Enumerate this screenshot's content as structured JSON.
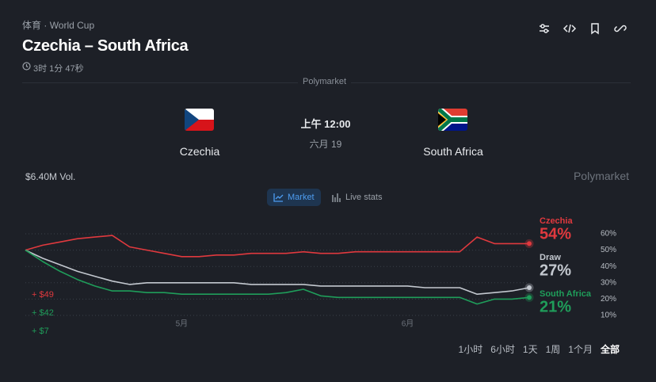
{
  "header": {
    "breadcrumb": [
      "体育",
      "World Cup"
    ],
    "title": "Czechia – South Africa",
    "countdown": "3时 1分 47秒"
  },
  "source": "Polymarket",
  "match": {
    "home": "Czechia",
    "away": "South Africa",
    "time": "上午 12:00",
    "date": "六月 19"
  },
  "volume": "$6.40M Vol.",
  "watermark": "Polymarket",
  "tabs": [
    "Market",
    "Live stats"
  ],
  "chart_data": {
    "type": "line",
    "categories": [
      null,
      null,
      null,
      null,
      null,
      null,
      null,
      null,
      null,
      "5月",
      null,
      null,
      null,
      null,
      null,
      null,
      null,
      null,
      null,
      null,
      null,
      null,
      "6月",
      null,
      null,
      null,
      null,
      null,
      null,
      null
    ],
    "series": [
      {
        "name": "Czechia",
        "color": "#e0393e",
        "latest": "54%",
        "values": [
          50,
          53,
          55,
          57,
          58,
          59,
          52,
          50,
          48,
          46,
          46,
          47,
          47,
          48,
          48,
          48,
          49,
          48,
          48,
          49,
          49,
          49,
          49,
          49,
          49,
          49,
          58,
          54,
          54,
          54
        ]
      },
      {
        "name": "Draw",
        "color": "#c3c8cf",
        "latest": "27%",
        "values": [
          50,
          45,
          41,
          37,
          34,
          31,
          29,
          30,
          30,
          30,
          30,
          30,
          30,
          29,
          29,
          29,
          29,
          28,
          28,
          28,
          28,
          28,
          28,
          27,
          27,
          27,
          23,
          24,
          25,
          27
        ]
      },
      {
        "name": "South Africa",
        "color": "#1f9d5a",
        "latest": "21%",
        "values": [
          50,
          43,
          37,
          32,
          28,
          25,
          25,
          24,
          24,
          23,
          23,
          23,
          23,
          23,
          23,
          24,
          26,
          22,
          21,
          21,
          21,
          21,
          21,
          21,
          21,
          21,
          17,
          20,
          20,
          21
        ]
      }
    ],
    "ylim": [
      10,
      60
    ],
    "yticks": [
      {
        "value": 10,
        "label": "10%"
      },
      {
        "value": 20,
        "label": "20%"
      },
      {
        "value": 30,
        "label": "30%"
      },
      {
        "value": 40,
        "label": "40%"
      },
      {
        "value": 50,
        "label": "50%"
      },
      {
        "value": 60,
        "label": "60%"
      }
    ],
    "grid": true
  },
  "holdings": [
    "+ $49",
    "+ $42",
    "+ $7"
  ],
  "ranges": [
    "1小时",
    "6小时",
    "1天",
    "1周",
    "1个月",
    "全部"
  ]
}
